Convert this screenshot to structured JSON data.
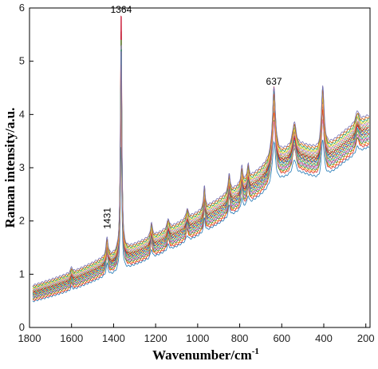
{
  "chart_data": {
    "type": "line",
    "title": "",
    "xlabel": "Wavenumber/cm",
    "xlabel_sup": "-1",
    "ylabel": "Raman intensity/a.u.",
    "xlim": [
      1800,
      180
    ],
    "x_reversed": true,
    "ylim": [
      0,
      6
    ],
    "xticks": [
      1800,
      1600,
      1400,
      1200,
      1000,
      800,
      600,
      400,
      200
    ],
    "yticks": [
      0,
      1,
      2,
      3,
      4,
      5,
      6
    ],
    "grid": false,
    "legend": "none",
    "annotations": [
      {
        "text": "1364",
        "x": 1364,
        "y": 5.85
      },
      {
        "text": "637",
        "x": 637,
        "y": 4.5
      },
      {
        "text": "1431",
        "x": 1431,
        "y": 1.85,
        "rotated": true
      }
    ],
    "baseline_x": [
      1785,
      1700,
      1600,
      1500,
      1460,
      1400,
      1300,
      1200,
      1100,
      1000,
      900,
      800,
      700,
      650,
      600,
      550,
      500,
      450,
      420,
      400,
      350,
      300,
      250,
      200,
      185
    ],
    "baseline_y": [
      0.65,
      0.75,
      0.88,
      1.05,
      1.12,
      1.2,
      1.38,
      1.56,
      1.75,
      1.96,
      2.2,
      2.46,
      2.75,
      2.92,
      3.06,
      3.15,
      3.18,
      3.12,
      3.05,
      3.1,
      3.25,
      3.42,
      3.55,
      3.68,
      3.7
    ],
    "peaks": [
      {
        "x": 1600,
        "height": 0.12,
        "width": 5
      },
      {
        "x": 1431,
        "height": 0.4,
        "width": 6
      },
      {
        "x": 1364,
        "height": 4.45,
        "width": 4
      },
      {
        "x": 1220,
        "height": 0.3,
        "width": 5
      },
      {
        "x": 1140,
        "height": 0.2,
        "width": 6
      },
      {
        "x": 1050,
        "height": 0.2,
        "width": 6
      },
      {
        "x": 968,
        "height": 0.5,
        "width": 4
      },
      {
        "x": 850,
        "height": 0.4,
        "width": 5
      },
      {
        "x": 790,
        "height": 0.35,
        "width": 5
      },
      {
        "x": 760,
        "height": 0.3,
        "width": 5
      },
      {
        "x": 637,
        "height": 1.45,
        "width": 9
      },
      {
        "x": 540,
        "height": 0.5,
        "width": 10
      },
      {
        "x": 405,
        "height": 1.35,
        "width": 8
      },
      {
        "x": 240,
        "height": 0.25,
        "width": 10
      }
    ],
    "series_count": 26,
    "series_colors": [
      "#1f77b4",
      "#d62728",
      "#ff7f0e",
      "#2ca02c",
      "#9467bd",
      "#8c564b",
      "#e377c2",
      "#17becf",
      "#bcbd22",
      "#7f7f7f",
      "#c8102e",
      "#00a6d6",
      "#f2b701",
      "#5e3c99",
      "#4daf4a",
      "#e41a1c",
      "#a65628",
      "#66c2a5",
      "#fc8d62",
      "#8da0cb",
      "#e78ac3",
      "#a6d854",
      "#ffd92f",
      "#1b9e77",
      "#d95f02",
      "#7570b3"
    ],
    "series_offsets": [
      -0.16,
      -0.14,
      -0.12,
      -0.1,
      -0.09,
      -0.08,
      -0.07,
      -0.06,
      -0.05,
      -0.04,
      -0.03,
      -0.02,
      -0.01,
      0.0,
      0.01,
      0.02,
      0.03,
      0.04,
      0.05,
      0.06,
      0.07,
      0.08,
      0.09,
      0.1,
      0.12,
      0.14
    ],
    "series_peak_scales": [
      0.55,
      1.0,
      0.9,
      0.75,
      0.85,
      1.05,
      0.7,
      0.95,
      0.8,
      0.88,
      1.1,
      0.78,
      0.92,
      0.83,
      0.98,
      0.72,
      0.86,
      0.9,
      0.76,
      0.94,
      0.82,
      0.87,
      0.79,
      0.91,
      0.84,
      0.89
    ]
  }
}
